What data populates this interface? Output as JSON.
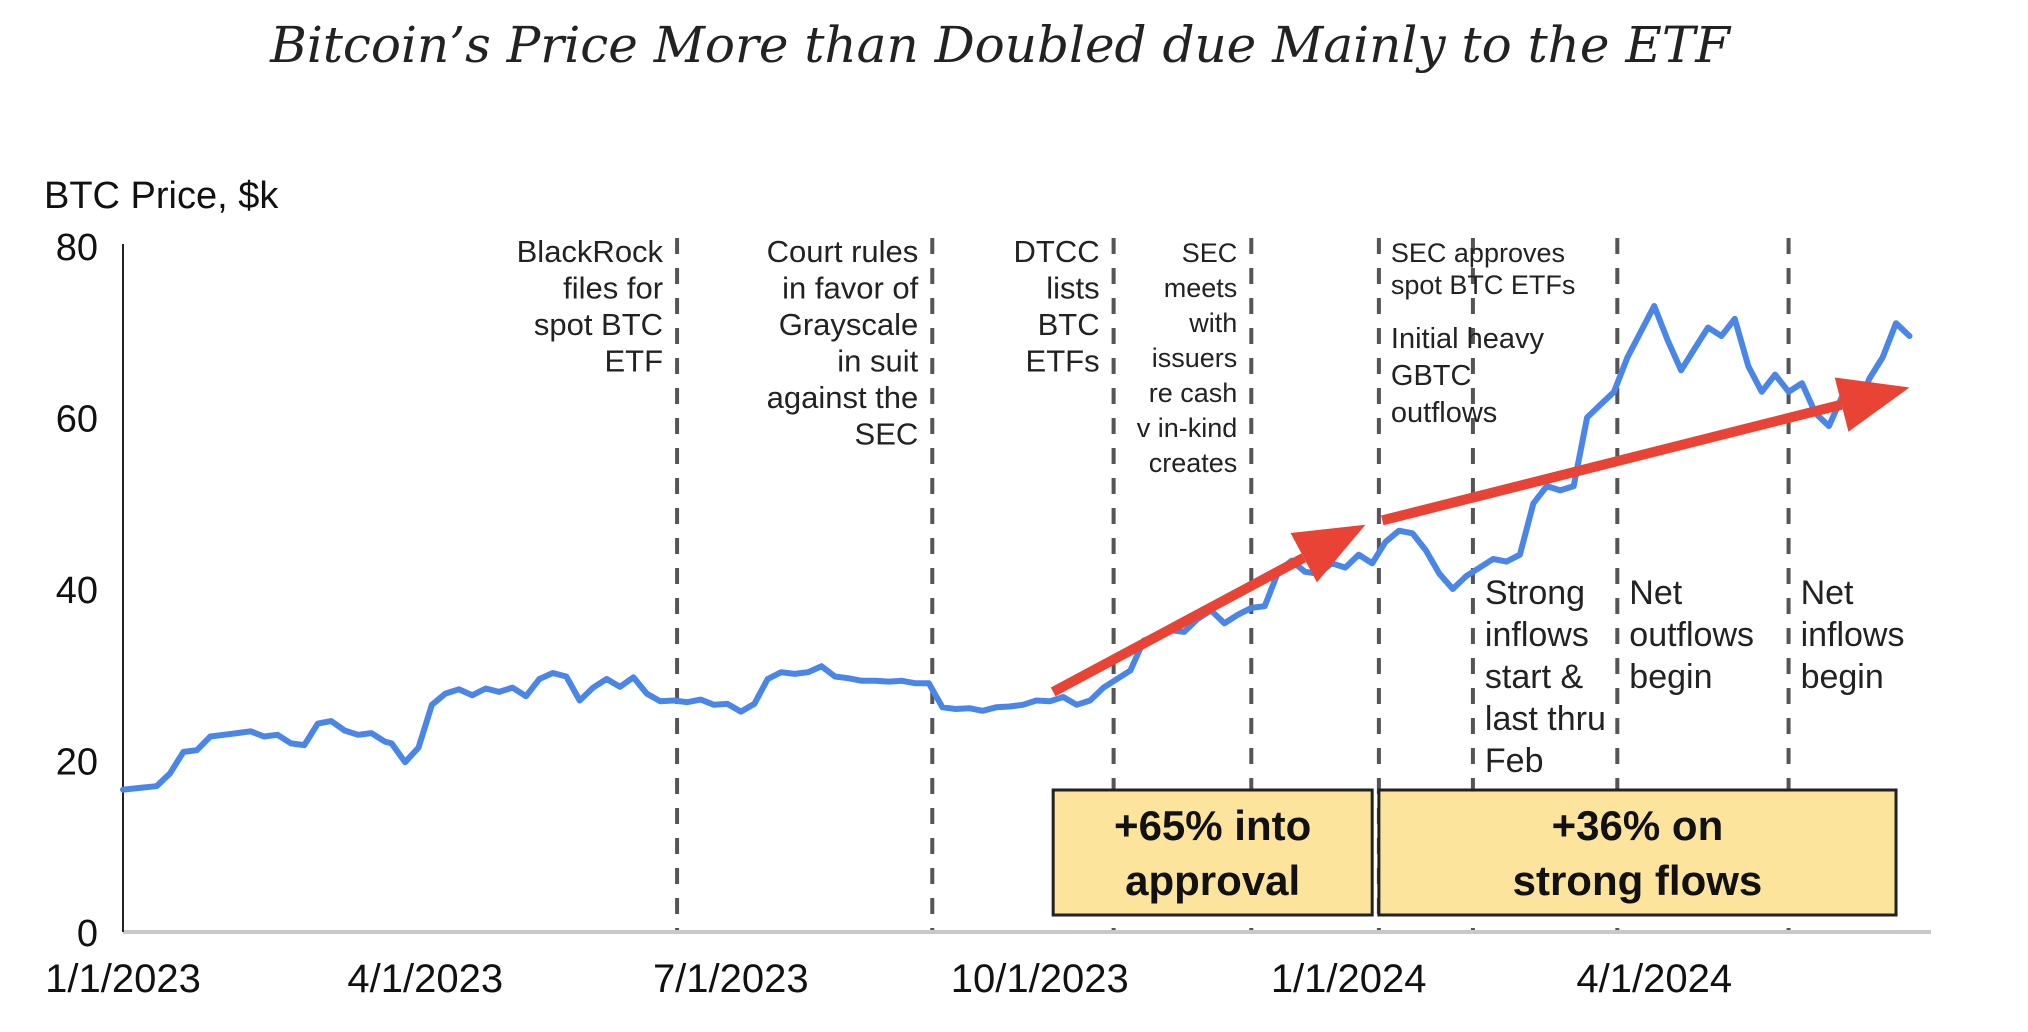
{
  "chart_data": {
    "type": "line",
    "title": "Bitcoin’s Price More than Doubled due Mainly to the ETF",
    "ylabel": "BTC Price, $k",
    "xlabel": "",
    "ylim": [
      0,
      80
    ],
    "yticks": [
      0,
      20,
      40,
      60,
      80
    ],
    "x_start": "1/1/2023",
    "x_end_days": 532,
    "xticks": [
      {
        "label": "1/1/2023",
        "day": 0
      },
      {
        "label": "4/1/2023",
        "day": 90
      },
      {
        "label": "7/1/2023",
        "day": 181
      },
      {
        "label": "10/1/2023",
        "day": 273
      },
      {
        "label": "1/1/2024",
        "day": 365
      },
      {
        "label": "4/1/2024",
        "day": 456
      }
    ],
    "grid": false,
    "legend": "none",
    "colors": {
      "line": "#4a86e8",
      "arrow": "#e94335",
      "box_fill": "#fde49c",
      "vline": "#555555"
    },
    "series": [
      {
        "name": "BTC Price ($k)",
        "x_days": [
          0,
          5,
          10,
          14,
          18,
          22,
          26,
          30,
          34,
          38,
          42,
          46,
          50,
          54,
          58,
          62,
          66,
          70,
          74,
          78,
          80,
          84,
          88,
          92,
          96,
          100,
          104,
          108,
          112,
          116,
          120,
          124,
          128,
          132,
          136,
          140,
          144,
          148,
          152,
          156,
          160,
          164,
          168,
          172,
          176,
          180,
          184,
          188,
          192,
          196,
          200,
          204,
          208,
          212,
          216,
          220,
          224,
          228,
          232,
          236,
          240,
          244,
          248,
          252,
          256,
          260,
          264,
          268,
          272,
          276,
          280,
          284,
          288,
          292,
          296,
          300,
          304,
          308,
          312,
          316,
          320,
          324,
          328,
          332,
          336,
          340,
          344,
          348,
          352,
          356,
          360,
          364,
          368,
          372,
          376,
          380,
          384,
          388,
          392,
          396,
          400,
          404,
          408,
          412,
          416,
          420,
          424,
          428,
          432,
          436,
          440,
          444,
          448,
          452,
          456,
          460,
          464,
          468,
          472,
          476,
          480,
          484,
          488,
          492,
          496,
          500,
          504,
          508,
          512,
          516,
          520,
          524,
          528,
          532
        ],
        "values": [
          16.6,
          16.8,
          17.0,
          18.5,
          21.0,
          21.2,
          22.8,
          23.0,
          23.2,
          23.4,
          22.8,
          23.0,
          22.0,
          21.8,
          24.3,
          24.6,
          23.5,
          23.0,
          23.2,
          22.2,
          22.0,
          19.8,
          21.5,
          26.5,
          27.8,
          28.3,
          27.6,
          28.4,
          28.0,
          28.5,
          27.5,
          29.5,
          30.2,
          29.8,
          27.0,
          28.5,
          29.5,
          28.6,
          29.7,
          27.8,
          26.9,
          27.0,
          26.8,
          27.1,
          26.5,
          26.6,
          25.7,
          26.6,
          29.5,
          30.3,
          30.1,
          30.3,
          31.0,
          29.8,
          29.6,
          29.3,
          29.3,
          29.2,
          29.3,
          29.0,
          29.0,
          26.2,
          26.0,
          26.1,
          25.8,
          26.2,
          26.3,
          26.5,
          27.0,
          26.9,
          27.4,
          26.5,
          27.0,
          28.5,
          29.5,
          30.5,
          34.0,
          34.5,
          35.2,
          35.0,
          36.5,
          37.5,
          36.0,
          37.0,
          37.8,
          38.0,
          42.0,
          43.3,
          42.0,
          41.8,
          43.0,
          42.5,
          44.0,
          43.0,
          45.5,
          46.8,
          46.5,
          44.5,
          41.8,
          40.0,
          41.5,
          42.5,
          43.5,
          43.2,
          44.0,
          50.0,
          52.0,
          51.5,
          52.0,
          60.0,
          61.5,
          63.0,
          67.0,
          70.0,
          73.0,
          69.0,
          65.5,
          68.0,
          70.5,
          69.5,
          71.5,
          66.0,
          63.0,
          65.0,
          63.0,
          64.0,
          60.5,
          59.0,
          62.5,
          60.0,
          64.5,
          67.0,
          71.0,
          69.5,
          70.5,
          69.0,
          66.5,
          65.0,
          64.5,
          63.5
        ]
      }
    ],
    "event_lines": [
      {
        "day": 165,
        "label_lines": [
          "BlackRock",
          "files for",
          "spot BTC",
          "ETF"
        ],
        "label_side": "left",
        "label_pos": "top"
      },
      {
        "day": 241,
        "label_lines": [
          "Court rules",
          "in favor of",
          "Grayscale",
          "in suit",
          "against the",
          "SEC"
        ],
        "label_side": "left",
        "label_pos": "top"
      },
      {
        "day": 295,
        "label_lines": [
          "DTCC",
          "lists",
          "BTC",
          "ETFs"
        ],
        "label_side": "left",
        "label_pos": "top"
      },
      {
        "day": 336,
        "label_lines": [
          "SEC",
          "meets",
          "with",
          "issuers",
          "re cash",
          "v in-kind",
          "creates"
        ],
        "label_side": "left",
        "label_pos": "top"
      },
      {
        "day": 374,
        "label_lines": [
          "SEC approves",
          "spot BTC ETFs"
        ],
        "label_side": "right",
        "label_pos": "top"
      },
      {
        "day": 402,
        "label_lines": [
          "Strong",
          "inflows",
          "start &",
          "last thru",
          "Feb"
        ],
        "label_side": "right",
        "label_pos": "bottom"
      },
      {
        "day": 445,
        "label_lines": [
          "Net",
          "outflows",
          "begin"
        ],
        "label_side": "right",
        "label_pos": "bottom"
      },
      {
        "day": 496,
        "label_lines": [
          "Net",
          "inflows",
          "begin"
        ],
        "label_side": "right",
        "label_pos": "bottom"
      }
    ],
    "extra_annotation": {
      "label_lines": [
        "Initial heavy",
        "GBTC",
        "outflows"
      ],
      "day": 374
    },
    "trend_arrows": [
      {
        "from": {
          "day": 277,
          "value": 28
        },
        "to": {
          "day": 370,
          "value": 47.5
        }
      },
      {
        "from": {
          "day": 375,
          "value": 48
        },
        "to": {
          "day": 532,
          "value": 63.5
        }
      }
    ],
    "boxes": [
      {
        "from_day": 277,
        "to_day": 372,
        "label_lines": [
          "+65% into",
          "approval"
        ]
      },
      {
        "from_day": 374,
        "to_day": 528,
        "label_lines": [
          "+36% on",
          "strong flows"
        ]
      }
    ]
  }
}
